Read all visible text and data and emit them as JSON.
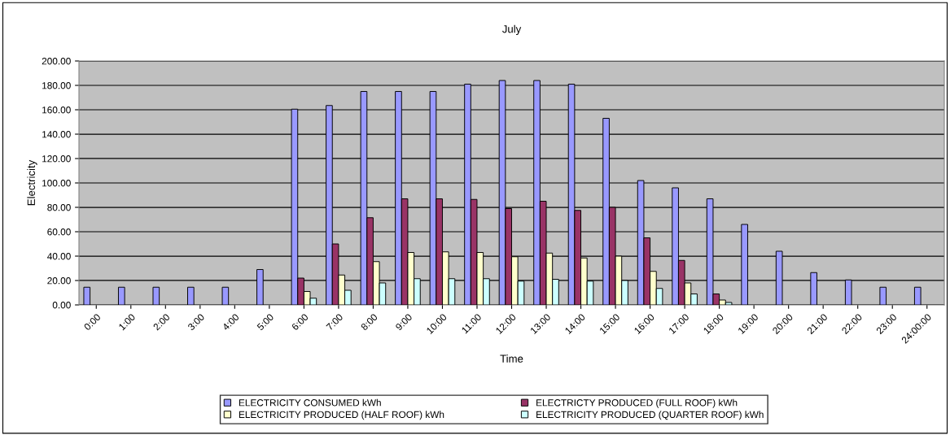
{
  "chart_data": {
    "type": "bar",
    "title": "July",
    "xlabel": "Time",
    "ylabel": "Electricity",
    "categories": [
      "0:00",
      "1:00",
      "2:00",
      "3:00",
      "4:00",
      "5:00",
      "6:00",
      "7:00",
      "8:00",
      "9:00",
      "10:00",
      "11:00",
      "12:00",
      "13:00",
      "14:00",
      "15:00",
      "16:00",
      "17:00",
      "18:00",
      "19:00",
      "20:00",
      "21:00",
      "22:00",
      "23:00",
      "24:00:00"
    ],
    "series": [
      {
        "name": "ELECTRICITY CONSUMED kWh",
        "color": "#9999ff",
        "values": [
          14.5,
          14.5,
          14.5,
          14.5,
          14.5,
          29,
          160.5,
          163.5,
          175,
          175,
          175,
          181,
          184,
          184,
          181,
          153,
          102,
          96,
          87,
          66,
          44,
          26.5,
          20.5,
          14.5,
          14.5
        ]
      },
      {
        "name": "ELECTRICTY PRODUCED (FULL ROOF) kWh",
        "color": "#993366",
        "values": [
          null,
          null,
          null,
          null,
          null,
          null,
          22,
          50,
          71.5,
          87,
          87,
          86.5,
          79,
          85,
          77.5,
          80,
          55,
          36.5,
          9,
          null,
          null,
          null,
          null,
          null,
          null
        ]
      },
      {
        "name": "ELECTRICITY PRODUCED (HALF ROOF) kWh",
        "color": "#ffffcc",
        "values": [
          null,
          null,
          null,
          null,
          null,
          null,
          11,
          24.5,
          35.5,
          43,
          43.5,
          43,
          39.5,
          42.5,
          38.5,
          40,
          27.5,
          18,
          4,
          null,
          null,
          null,
          null,
          null,
          null
        ]
      },
      {
        "name": "ELECTRICITY PRODUCED (QUARTER ROOF) kWh",
        "color": "#ccffff",
        "values": [
          null,
          null,
          null,
          null,
          null,
          null,
          5.5,
          12,
          18,
          21.5,
          21.5,
          21.5,
          19.5,
          21,
          19.5,
          20,
          13.5,
          9,
          2,
          null,
          null,
          null,
          null,
          null,
          null
        ]
      }
    ],
    "ylim": [
      0,
      200
    ],
    "yticks": [
      {
        "value": 0,
        "label": "0.00"
      },
      {
        "value": 20,
        "label": "20.00"
      },
      {
        "value": 40,
        "label": "40.00"
      },
      {
        "value": 60,
        "label": "60.00"
      },
      {
        "value": 80,
        "label": "80.00"
      },
      {
        "value": 100,
        "label": "100.00"
      },
      {
        "value": 120,
        "label": "120.00"
      },
      {
        "value": 140,
        "label": "140.00"
      },
      {
        "value": 160,
        "label": "160.00"
      },
      {
        "value": 180,
        "label": "180.00"
      },
      {
        "value": 200,
        "label": "200.00"
      }
    ],
    "grid": "y",
    "legend": "bottom"
  }
}
